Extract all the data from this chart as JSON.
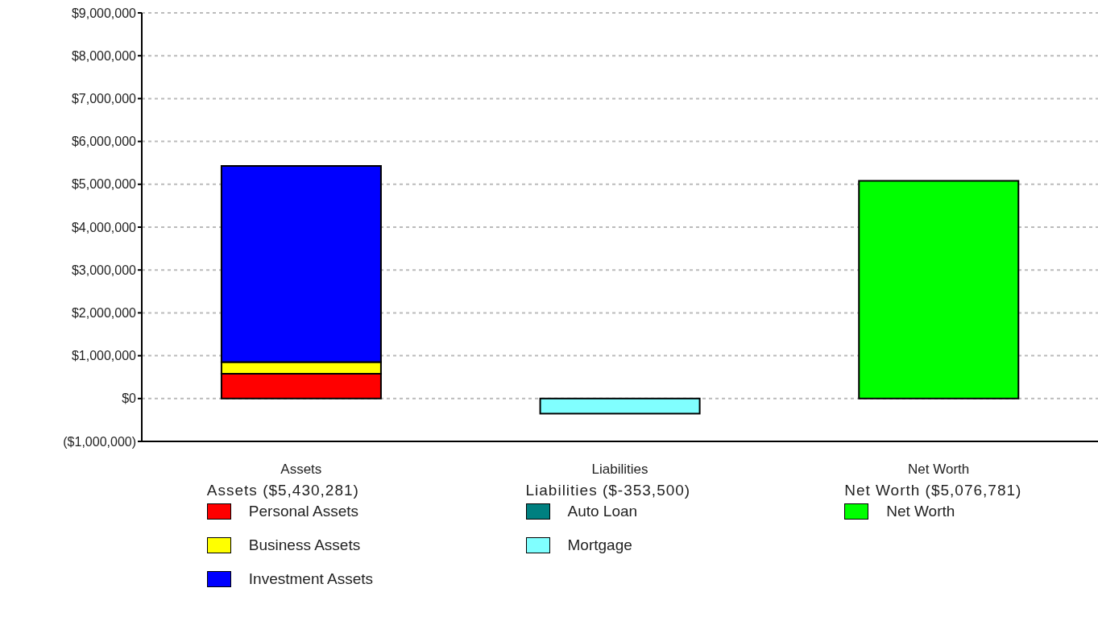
{
  "chart_data": {
    "type": "bar",
    "stacked": true,
    "categories": [
      "Assets",
      "Liabilities",
      "Net Worth"
    ],
    "series": [
      {
        "name": "Personal Assets",
        "color": "#ff0000",
        "values": [
          580000,
          null,
          null
        ]
      },
      {
        "name": "Business Assets",
        "color": "#ffff00",
        "values": [
          270000,
          null,
          null
        ]
      },
      {
        "name": "Investment Assets",
        "color": "#0000ff",
        "values": [
          4580000,
          null,
          null
        ]
      },
      {
        "name": "Auto Loan",
        "color": "#008080",
        "values": [
          null,
          null,
          null
        ]
      },
      {
        "name": "Mortgage",
        "color": "#80ffff",
        "values": [
          null,
          -350000,
          null
        ]
      },
      {
        "name": "Net Worth",
        "color": "#00ff00",
        "values": [
          null,
          null,
          5080000
        ]
      }
    ],
    "ylim": [
      -1000000,
      9000000
    ],
    "yticks": [
      {
        "value": -1000000,
        "label": "($1,000,000)"
      },
      {
        "value": 0,
        "label": "$0"
      },
      {
        "value": 1000000,
        "label": "$1,000,000"
      },
      {
        "value": 2000000,
        "label": "$2,000,000"
      },
      {
        "value": 3000000,
        "label": "$3,000,000"
      },
      {
        "value": 4000000,
        "label": "$4,000,000"
      },
      {
        "value": 5000000,
        "label": "$5,000,000"
      },
      {
        "value": 6000000,
        "label": "$6,000,000"
      },
      {
        "value": 7000000,
        "label": "$7,000,000"
      },
      {
        "value": 8000000,
        "label": "$8,000,000"
      },
      {
        "value": 9000000,
        "label": "$9,000,000"
      }
    ],
    "grid": "y",
    "legend": "bottom",
    "annotations": [
      "Assets ($5,430,281)",
      "Liabilities ($-353,500)",
      "Net Worth ($5,076,781)"
    ]
  }
}
